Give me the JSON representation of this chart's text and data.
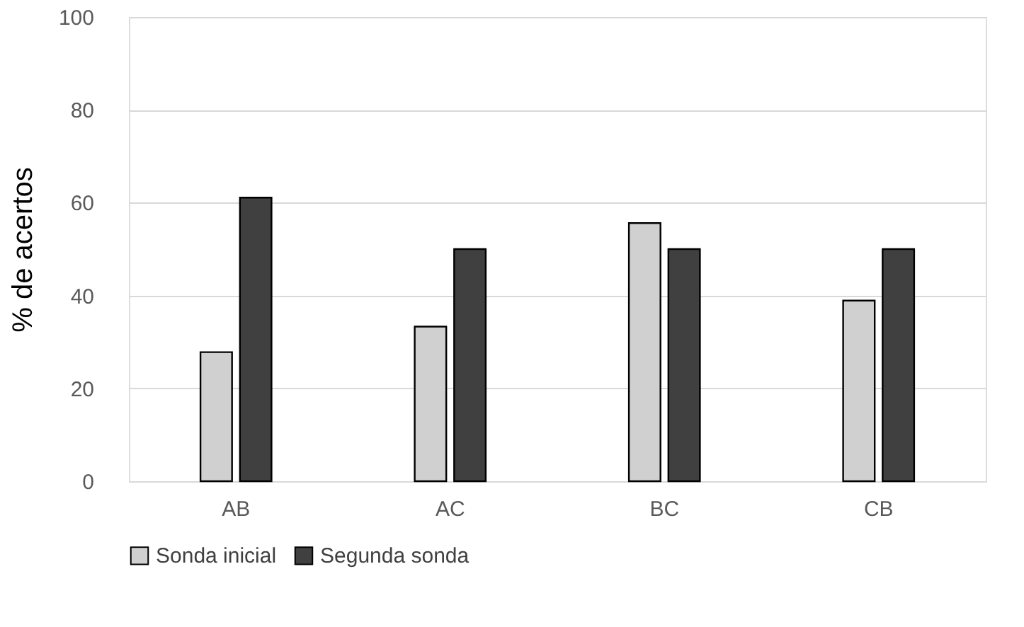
{
  "chart_data": {
    "type": "bar",
    "ylabel": "% de acertos",
    "categories": [
      "AB",
      "AC",
      "BC",
      "CB"
    ],
    "series": [
      {
        "name": "Sonda inicial",
        "color": "#d0d0d0",
        "values": [
          27.8,
          33.3,
          55.6,
          38.9
        ]
      },
      {
        "name": "Segunda sonda",
        "color": "#404040",
        "values": [
          61.1,
          50,
          50,
          50
        ]
      }
    ],
    "ylim": [
      0,
      100
    ],
    "yticks": [
      0,
      20,
      40,
      60,
      80,
      100
    ],
    "grid": "y",
    "legend": "bottom"
  }
}
